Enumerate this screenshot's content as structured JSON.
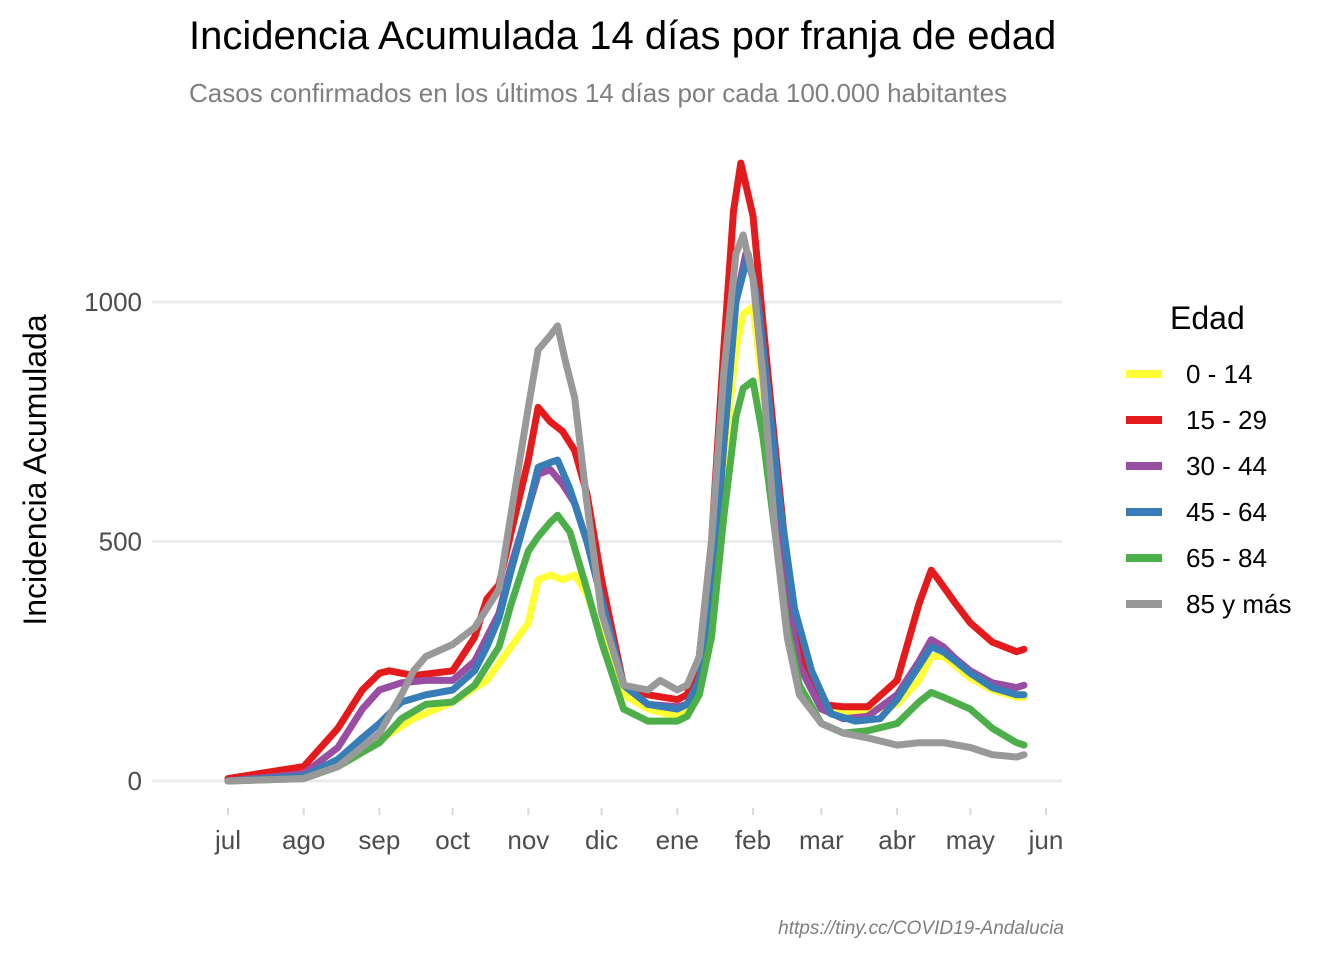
{
  "chart_data": {
    "type": "line",
    "title": "Incidencia Acumulada 14 días por franja de edad",
    "subtitle": "Casos confirmados en los últimos 14 días por cada 100.000 habitantes",
    "ylabel": "Incidencia Acumulada",
    "xlabel": "",
    "caption": "https://tiny.cc/COVID19-Andalucia",
    "legend_title": "Edad",
    "legend_position": "right",
    "grid": "horizontal",
    "x_ticks": [
      "jul",
      "ago",
      "sep",
      "oct",
      "nov",
      "dic",
      "ene",
      "feb",
      "mar",
      "abr",
      "may",
      "jun"
    ],
    "y_ticks": [
      0,
      500,
      1000
    ],
    "xlim": [
      "2020-07-01",
      "2021-06-01"
    ],
    "ylim": [
      -70,
      1300
    ],
    "series": [
      {
        "name": "0 - 14",
        "color": "#FFFF33",
        "points": [
          [
            "2020-07-01",
            0
          ],
          [
            "2020-08-01",
            7
          ],
          [
            "2020-08-15",
            30
          ],
          [
            "2020-09-01",
            85
          ],
          [
            "2020-09-15",
            130
          ],
          [
            "2020-10-01",
            165
          ],
          [
            "2020-10-15",
            210
          ],
          [
            "2020-11-01",
            330
          ],
          [
            "2020-11-05",
            420
          ],
          [
            "2020-11-10",
            430
          ],
          [
            "2020-11-15",
            420
          ],
          [
            "2020-11-20",
            430
          ],
          [
            "2020-11-25",
            390
          ],
          [
            "2020-12-01",
            300
          ],
          [
            "2020-12-10",
            180
          ],
          [
            "2020-12-20",
            150
          ],
          [
            "2021-01-01",
            135
          ],
          [
            "2021-01-05",
            145
          ],
          [
            "2021-01-10",
            200
          ],
          [
            "2021-01-15",
            380
          ],
          [
            "2021-01-20",
            660
          ],
          [
            "2021-01-25",
            900
          ],
          [
            "2021-01-28",
            975
          ],
          [
            "2021-02-01",
            990
          ],
          [
            "2021-02-05",
            820
          ],
          [
            "2021-02-10",
            600
          ],
          [
            "2021-02-15",
            400
          ],
          [
            "2021-02-20",
            250
          ],
          [
            "2021-03-01",
            160
          ],
          [
            "2021-03-10",
            140
          ],
          [
            "2021-03-20",
            145
          ],
          [
            "2021-04-01",
            160
          ],
          [
            "2021-04-10",
            210
          ],
          [
            "2021-04-15",
            260
          ],
          [
            "2021-04-20",
            260
          ],
          [
            "2021-04-25",
            240
          ],
          [
            "2021-05-01",
            215
          ],
          [
            "2021-05-10",
            190
          ],
          [
            "2021-05-20",
            175
          ],
          [
            "2021-05-23",
            175
          ]
        ]
      },
      {
        "name": "15 - 29",
        "color": "#E41A1C",
        "points": [
          [
            "2020-07-01",
            5
          ],
          [
            "2020-08-01",
            30
          ],
          [
            "2020-08-15",
            110
          ],
          [
            "2020-08-25",
            190
          ],
          [
            "2020-09-01",
            225
          ],
          [
            "2020-09-05",
            230
          ],
          [
            "2020-09-15",
            220
          ],
          [
            "2020-10-01",
            230
          ],
          [
            "2020-10-10",
            300
          ],
          [
            "2020-10-15",
            380
          ],
          [
            "2020-10-20",
            410
          ],
          [
            "2020-10-25",
            520
          ],
          [
            "2020-11-01",
            670
          ],
          [
            "2020-11-05",
            780
          ],
          [
            "2020-11-10",
            750
          ],
          [
            "2020-11-15",
            730
          ],
          [
            "2020-11-20",
            690
          ],
          [
            "2020-11-25",
            600
          ],
          [
            "2020-12-01",
            420
          ],
          [
            "2020-12-10",
            200
          ],
          [
            "2020-12-20",
            180
          ],
          [
            "2021-01-01",
            170
          ],
          [
            "2021-01-05",
            180
          ],
          [
            "2021-01-10",
            260
          ],
          [
            "2021-01-15",
            500
          ],
          [
            "2021-01-20",
            900
          ],
          [
            "2021-01-24",
            1190
          ],
          [
            "2021-01-27",
            1290
          ],
          [
            "2021-02-01",
            1180
          ],
          [
            "2021-02-05",
            960
          ],
          [
            "2021-02-10",
            700
          ],
          [
            "2021-02-15",
            450
          ],
          [
            "2021-02-20",
            280
          ],
          [
            "2021-03-01",
            160
          ],
          [
            "2021-03-10",
            155
          ],
          [
            "2021-03-20",
            155
          ],
          [
            "2021-04-01",
            210
          ],
          [
            "2021-04-10",
            370
          ],
          [
            "2021-04-15",
            440
          ],
          [
            "2021-04-18",
            420
          ],
          [
            "2021-04-25",
            370
          ],
          [
            "2021-05-01",
            330
          ],
          [
            "2021-05-10",
            290
          ],
          [
            "2021-05-20",
            270
          ],
          [
            "2021-05-23",
            275
          ]
        ]
      },
      {
        "name": "30 - 44",
        "color": "#984EA3",
        "points": [
          [
            "2020-07-01",
            0
          ],
          [
            "2020-08-01",
            15
          ],
          [
            "2020-08-15",
            70
          ],
          [
            "2020-08-25",
            150
          ],
          [
            "2020-09-01",
            190
          ],
          [
            "2020-09-10",
            205
          ],
          [
            "2020-09-20",
            210
          ],
          [
            "2020-10-01",
            210
          ],
          [
            "2020-10-10",
            250
          ],
          [
            "2020-10-15",
            300
          ],
          [
            "2020-10-20",
            350
          ],
          [
            "2020-10-25",
            450
          ],
          [
            "2020-11-01",
            570
          ],
          [
            "2020-11-05",
            640
          ],
          [
            "2020-11-10",
            650
          ],
          [
            "2020-11-15",
            620
          ],
          [
            "2020-11-20",
            580
          ],
          [
            "2020-11-25",
            500
          ],
          [
            "2020-12-01",
            380
          ],
          [
            "2020-12-10",
            200
          ],
          [
            "2020-12-20",
            160
          ],
          [
            "2021-01-01",
            155
          ],
          [
            "2021-01-05",
            160
          ],
          [
            "2021-01-10",
            210
          ],
          [
            "2021-01-15",
            370
          ],
          [
            "2021-01-20",
            700
          ],
          [
            "2021-01-25",
            1000
          ],
          [
            "2021-01-29",
            1100
          ],
          [
            "2021-02-01",
            1050
          ],
          [
            "2021-02-05",
            850
          ],
          [
            "2021-02-10",
            600
          ],
          [
            "2021-02-15",
            380
          ],
          [
            "2021-02-20",
            240
          ],
          [
            "2021-03-01",
            150
          ],
          [
            "2021-03-10",
            130
          ],
          [
            "2021-03-20",
            135
          ],
          [
            "2021-04-01",
            180
          ],
          [
            "2021-04-10",
            250
          ],
          [
            "2021-04-15",
            295
          ],
          [
            "2021-04-20",
            280
          ],
          [
            "2021-04-25",
            255
          ],
          [
            "2021-05-01",
            230
          ],
          [
            "2021-05-10",
            205
          ],
          [
            "2021-05-20",
            195
          ],
          [
            "2021-05-23",
            200
          ]
        ]
      },
      {
        "name": "45 - 64",
        "color": "#377EB8",
        "points": [
          [
            "2020-07-01",
            0
          ],
          [
            "2020-08-01",
            10
          ],
          [
            "2020-08-15",
            45
          ],
          [
            "2020-08-25",
            90
          ],
          [
            "2020-09-01",
            120
          ],
          [
            "2020-09-10",
            165
          ],
          [
            "2020-09-20",
            180
          ],
          [
            "2020-10-01",
            190
          ],
          [
            "2020-10-10",
            230
          ],
          [
            "2020-10-15",
            280
          ],
          [
            "2020-10-20",
            340
          ],
          [
            "2020-10-25",
            440
          ],
          [
            "2020-11-01",
            570
          ],
          [
            "2020-11-05",
            655
          ],
          [
            "2020-11-10",
            665
          ],
          [
            "2020-11-13",
            670
          ],
          [
            "2020-11-18",
            610
          ],
          [
            "2020-11-25",
            500
          ],
          [
            "2020-12-01",
            380
          ],
          [
            "2020-12-10",
            200
          ],
          [
            "2020-12-20",
            160
          ],
          [
            "2021-01-01",
            150
          ],
          [
            "2021-01-05",
            160
          ],
          [
            "2021-01-10",
            210
          ],
          [
            "2021-01-15",
            370
          ],
          [
            "2021-01-20",
            700
          ],
          [
            "2021-01-25",
            1000
          ],
          [
            "2021-01-30",
            1100
          ],
          [
            "2021-02-03",
            1000
          ],
          [
            "2021-02-07",
            820
          ],
          [
            "2021-02-12",
            580
          ],
          [
            "2021-02-18",
            360
          ],
          [
            "2021-02-25",
            230
          ],
          [
            "2021-03-05",
            140
          ],
          [
            "2021-03-15",
            125
          ],
          [
            "2021-03-25",
            130
          ],
          [
            "2021-04-01",
            170
          ],
          [
            "2021-04-10",
            240
          ],
          [
            "2021-04-15",
            280
          ],
          [
            "2021-04-20",
            270
          ],
          [
            "2021-04-25",
            250
          ],
          [
            "2021-05-01",
            225
          ],
          [
            "2021-05-10",
            195
          ],
          [
            "2021-05-20",
            180
          ],
          [
            "2021-05-23",
            180
          ]
        ]
      },
      {
        "name": "65 - 84",
        "color": "#4DAF4A",
        "points": [
          [
            "2020-07-01",
            0
          ],
          [
            "2020-08-01",
            5
          ],
          [
            "2020-08-15",
            30
          ],
          [
            "2020-08-25",
            60
          ],
          [
            "2020-09-01",
            80
          ],
          [
            "2020-09-10",
            130
          ],
          [
            "2020-09-20",
            160
          ],
          [
            "2020-10-01",
            165
          ],
          [
            "2020-10-10",
            200
          ],
          [
            "2020-10-20",
            280
          ],
          [
            "2020-10-25",
            370
          ],
          [
            "2020-11-01",
            480
          ],
          [
            "2020-11-05",
            510
          ],
          [
            "2020-11-10",
            540
          ],
          [
            "2020-11-13",
            555
          ],
          [
            "2020-11-18",
            520
          ],
          [
            "2020-11-25",
            400
          ],
          [
            "2020-12-01",
            290
          ],
          [
            "2020-12-10",
            150
          ],
          [
            "2020-12-20",
            125
          ],
          [
            "2021-01-01",
            125
          ],
          [
            "2021-01-05",
            135
          ],
          [
            "2021-01-10",
            180
          ],
          [
            "2021-01-15",
            300
          ],
          [
            "2021-01-20",
            550
          ],
          [
            "2021-01-25",
            760
          ],
          [
            "2021-01-28",
            820
          ],
          [
            "2021-02-01",
            835
          ],
          [
            "2021-02-05",
            720
          ],
          [
            "2021-02-10",
            520
          ],
          [
            "2021-02-15",
            320
          ],
          [
            "2021-02-20",
            200
          ],
          [
            "2021-03-01",
            120
          ],
          [
            "2021-03-10",
            100
          ],
          [
            "2021-03-20",
            105
          ],
          [
            "2021-04-01",
            120
          ],
          [
            "2021-04-10",
            165
          ],
          [
            "2021-04-15",
            185
          ],
          [
            "2021-04-20",
            175
          ],
          [
            "2021-05-01",
            150
          ],
          [
            "2021-05-10",
            110
          ],
          [
            "2021-05-20",
            80
          ],
          [
            "2021-05-23",
            75
          ]
        ]
      },
      {
        "name": "85 y más",
        "color": "#999999",
        "points": [
          [
            "2020-07-01",
            0
          ],
          [
            "2020-08-01",
            5
          ],
          [
            "2020-08-15",
            30
          ],
          [
            "2020-09-01",
            100
          ],
          [
            "2020-09-10",
            180
          ],
          [
            "2020-09-15",
            230
          ],
          [
            "2020-09-20",
            260
          ],
          [
            "2020-10-01",
            285
          ],
          [
            "2020-10-10",
            320
          ],
          [
            "2020-10-15",
            360
          ],
          [
            "2020-10-20",
            400
          ],
          [
            "2020-10-25",
            560
          ],
          [
            "2020-11-01",
            780
          ],
          [
            "2020-11-05",
            900
          ],
          [
            "2020-11-10",
            930
          ],
          [
            "2020-11-13",
            950
          ],
          [
            "2020-11-16",
            880
          ],
          [
            "2020-11-20",
            800
          ],
          [
            "2020-11-25",
            580
          ],
          [
            "2020-12-01",
            350
          ],
          [
            "2020-12-10",
            200
          ],
          [
            "2020-12-20",
            190
          ],
          [
            "2020-12-25",
            210
          ],
          [
            "2021-01-01",
            190
          ],
          [
            "2021-01-05",
            200
          ],
          [
            "2021-01-10",
            260
          ],
          [
            "2021-01-15",
            500
          ],
          [
            "2021-01-20",
            850
          ],
          [
            "2021-01-25",
            1100
          ],
          [
            "2021-01-28",
            1140
          ],
          [
            "2021-02-01",
            1050
          ],
          [
            "2021-02-05",
            850
          ],
          [
            "2021-02-10",
            520
          ],
          [
            "2021-02-15",
            300
          ],
          [
            "2021-02-20",
            180
          ],
          [
            "2021-03-01",
            120
          ],
          [
            "2021-03-10",
            100
          ],
          [
            "2021-03-20",
            90
          ],
          [
            "2021-04-01",
            75
          ],
          [
            "2021-04-10",
            80
          ],
          [
            "2021-04-20",
            80
          ],
          [
            "2021-05-01",
            70
          ],
          [
            "2021-05-10",
            55
          ],
          [
            "2021-05-20",
            50
          ],
          [
            "2021-05-23",
            55
          ]
        ]
      }
    ]
  }
}
